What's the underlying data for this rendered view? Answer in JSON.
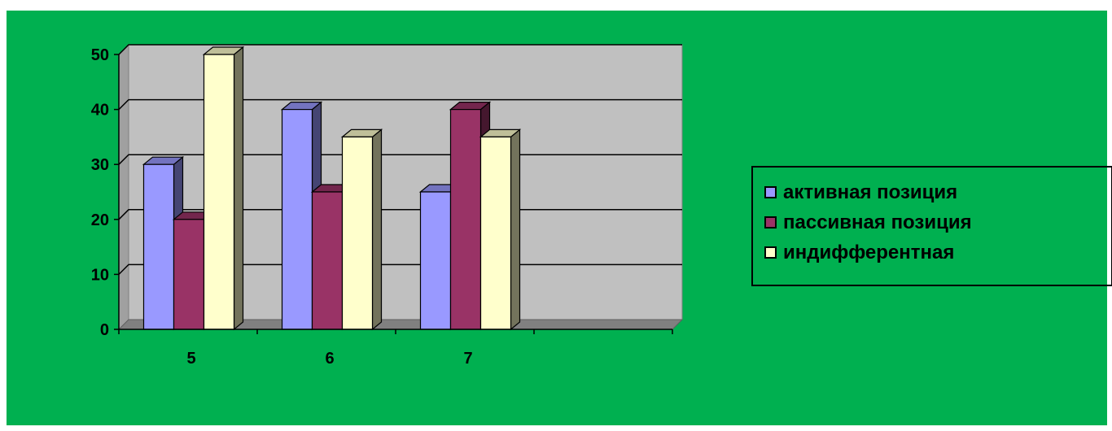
{
  "colors": {
    "background": "#00b050",
    "plot_area": "#c0c0c0",
    "gridline": "#000000"
  },
  "chart_data": {
    "type": "bar",
    "style": "3d-clustered-column",
    "title": "",
    "xlabel": "",
    "ylabel": "",
    "categories": [
      "5",
      "6",
      "7",
      ""
    ],
    "ylim": [
      0,
      50
    ],
    "yticks": [
      0,
      10,
      20,
      30,
      40,
      50
    ],
    "ytick_labels": [
      "0",
      "10",
      "20",
      "30",
      "40",
      "50"
    ],
    "grid": true,
    "legend_position": "right",
    "series": [
      {
        "name": "активная позиция",
        "color": "#9999ff",
        "values": [
          30,
          40,
          25,
          null
        ]
      },
      {
        "name": "пассивная позиция",
        "color": "#993366",
        "values": [
          20,
          25,
          40,
          null
        ]
      },
      {
        "name": "индифферентная",
        "color": "#ffffcc",
        "values": [
          50,
          35,
          35,
          null
        ]
      }
    ]
  }
}
